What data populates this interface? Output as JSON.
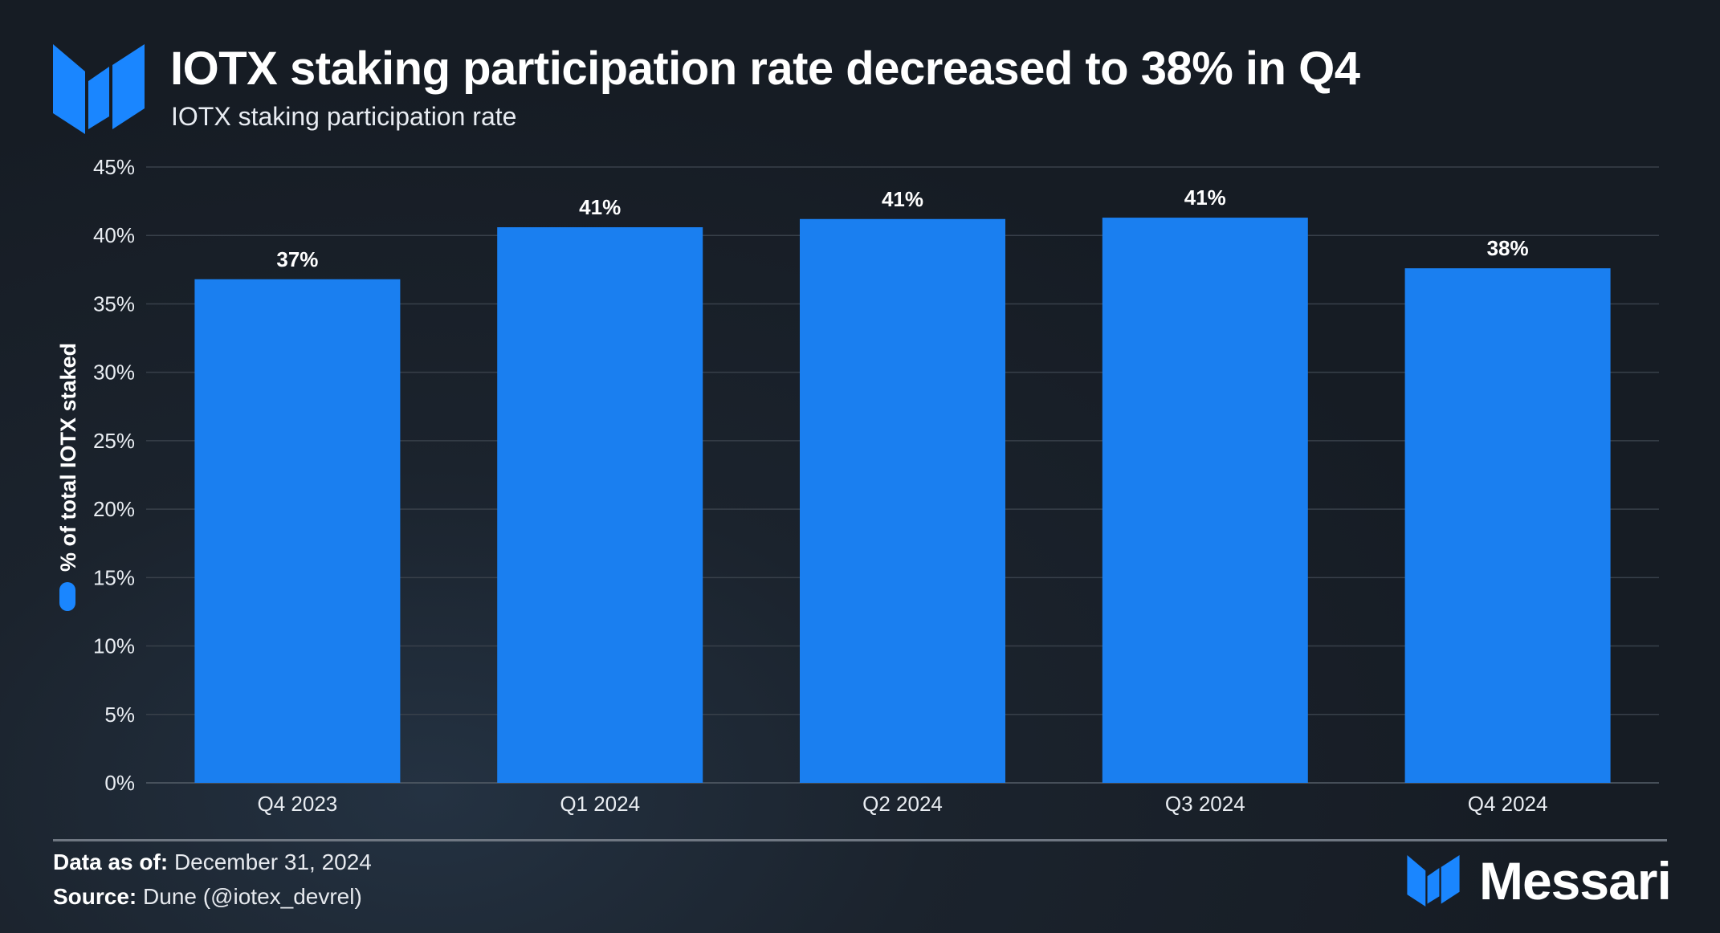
{
  "header": {
    "title": "IOTX staking participation rate decreased to 38% in Q4",
    "subtitle": "IOTX staking participation rate"
  },
  "chart_data": {
    "type": "bar",
    "title": "IOTX staking participation rate decreased to 38% in Q4",
    "subtitle": "IOTX staking participation rate",
    "categories": [
      "Q4 2023",
      "Q1 2024",
      "Q2 2024",
      "Q3 2024",
      "Q4 2024"
    ],
    "series": [
      {
        "name": "% of total IOTX staked",
        "values": [
          36.8,
          40.6,
          41.2,
          41.3,
          37.6
        ],
        "labels": [
          "37%",
          "41%",
          "41%",
          "41%",
          "38%"
        ],
        "color": "#1a7ff0"
      }
    ],
    "ylabel": "% of total IOTX staked",
    "xlabel": "",
    "ylim": [
      0,
      45
    ],
    "yticks": [
      0,
      5,
      10,
      15,
      20,
      25,
      30,
      35,
      40,
      45
    ],
    "ytick_labels": [
      "0%",
      "5%",
      "10%",
      "15%",
      "20%",
      "25%",
      "30%",
      "35%",
      "40%",
      "45%"
    ],
    "grid": true,
    "legend": "left, vertical alongside y-axis title"
  },
  "footer": {
    "date_label": "Data as of:",
    "date_value": "December 31, 2024",
    "source_label": "Source:",
    "source_value": "Dune (@iotex_devrel)"
  },
  "brand": {
    "name": "Messari",
    "logo_icon": "messari-logo-icon"
  },
  "colors": {
    "bar": "#1a7ff0",
    "accent": "#1a86ff",
    "grid": "#3a424c",
    "text": "#ffffff"
  }
}
